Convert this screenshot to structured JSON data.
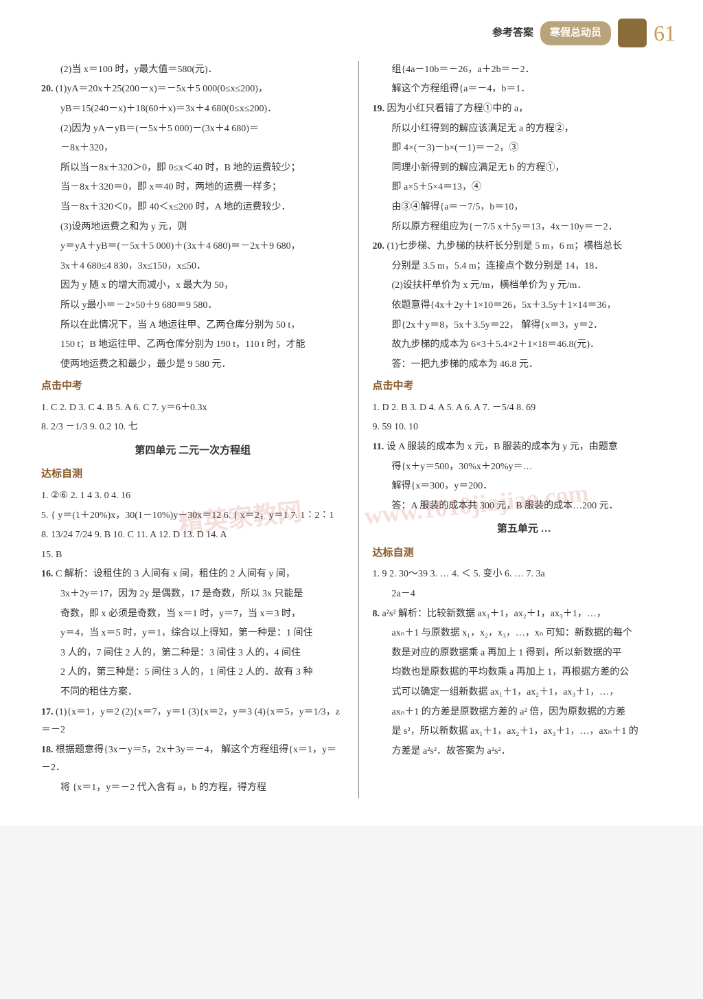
{
  "header": {
    "ref": "参考答案",
    "pill": "寒假总动员",
    "pagenum": "61"
  },
  "watermark1": "精英家教网",
  "watermark2": "www.1010jiajiao.com",
  "left": {
    "l1": "(2)当 x＝100 时，y最大值＝580(元)．",
    "l2n": "20.",
    "l2": "(1)yA＝20x＋25(200－x)＝－5x＋5 000(0≤x≤200)，",
    "l3": "yB＝15(240－x)＋18(60＋x)＝3x＋4 680(0≤x≤200)．",
    "l4": "(2)因为 yA－yB＝(－5x＋5 000)－(3x＋4 680)＝",
    "l5": "－8x＋320，",
    "l6": "所以当－8x＋320＞0，即 0≤x＜40 时，B 地的运费较少；",
    "l7": "当－8x＋320＝0，即 x＝40 时，两地的运费一样多；",
    "l8": "当－8x＋320＜0，即 40＜x≤200 时，A 地的运费较少．",
    "l9": "(3)设两地运费之和为 y 元，则",
    "l10": "y＝yA＋yB＝(－5x＋5 000)＋(3x＋4 680)＝－2x＋9 680，",
    "l11": "3x＋4 680≤4 830，3x≤150，x≤50．",
    "l12": "因为 y 随 x 的增大而减小，x 最大为 50，",
    "l13": "所以 y最小＝－2×50＋9 680＝9 580．",
    "l14": "所以在此情况下，当 A 地运往甲、乙两仓库分别为 50 t，",
    "l15": "150 t；B 地运往甲、乙两仓库分别为 190 t，110 t 时，才能",
    "l16": "使两地运费之和最少，最少是 9 580 元．",
    "sec1": "点击中考",
    "l17": "1. C  2. D  3. C  4. B  5. A  6. C  7. y＝6＋0.3x",
    "l18": "8. 2/3  －1/3  9. 0.2  10. 七",
    "unit4": "第四单元  二元一次方程组",
    "sec2": "达标自测",
    "l19": "1. ②⑥  2. 1  4  3. 0  4. 16",
    "l20": "5. { y＝(1＋20%)x，30(1－10%)y－30x＝12   6. { x＝2，y＝1   7. 1∶2∶1",
    "l21": "8. 13/24  7/24  9. B  10. C  11. A  12. D  13. D  14. A",
    "l22": "15. B",
    "l23n": "16.",
    "l23": "C  解析：设租住的 3 人间有 x 间，租住的 2 人间有 y 间，",
    "l24": "3x＋2y＝17，因为 2y 是偶数，17 是奇数，所以 3x 只能是",
    "l25": "奇数，即 x 必须是奇数，当 x＝1 时，y＝7，当 x＝3 时，",
    "l26": "y＝4，当 x＝5 时，y＝1，综合以上得知，第一种是：1 间住",
    "l27": "3 人的，7 间住 2 人的，第二种是：3 间住 3 人的，4 间住",
    "l28": "2 人的，第三种是：5 间住 3 人的，1 间住 2 人的．故有 3 种",
    "l29": "不同的租住方案．",
    "l30n": "17.",
    "l30": "(1){x＝1，y＝2  (2){x＝7，y＝1  (3){x＝2，y＝3  (4){x＝5，y＝1/3，z＝－2",
    "l31n": "18.",
    "l31": "根据题意得{3x－y＝5，2x＋3y＝－4， 解这个方程组得{x＝1，y＝－2．",
    "l32": "将 {x＝1，y＝－2 代入含有 a，b 的方程，得方程"
  },
  "right": {
    "l1": "组{4a－10b＝－26，a＋2b＝－2．",
    "l2": "解这个方程组得{a＝－4，b＝1．",
    "l3n": "19.",
    "l3": "因为小红只看错了方程①中的 a，",
    "l4": "所以小红得到的解应该满足无 a 的方程②，",
    "l5": "即 4×(－3)－b×(－1)＝－2，③",
    "l6": "同理小新得到的解应满足无 b 的方程①，",
    "l7": "即 a×5＋5×4＝13，④",
    "l8": "由③④解得{a＝－7/5，b＝10，",
    "l9": "所以原方程组应为{－7/5 x＋5y＝13，4x－10y＝－2．",
    "l10n": "20.",
    "l10": "(1)七步梯、九步梯的扶杆长分别是 5 m，6 m；横档总长",
    "l11": "分别是 3.5 m，5.4 m；连接点个数分别是 14，18．",
    "l12": "(2)设扶杆单价为 x 元/m，横档单价为 y 元/m．",
    "l13": "依题意得{4x＋2y＋1×10＝26，5x＋3.5y＋1×14＝36，",
    "l14": "即{2x＋y＝8，5x＋3.5y＝22，  解得{x＝3，y＝2．",
    "l15": "故九步梯的成本为 6×3＋5.4×2＋1×18＝46.8(元)．",
    "l16": "答：一把九步梯的成本为 46.8 元．",
    "sec1": "点击中考",
    "l17": "1. D  2. B  3. D  4. A  5. A  6. A  7. －5/4  8. 69",
    "l18": "9. 59  10. 10",
    "l19n": "11.",
    "l19": "设 A 服装的成本为 x 元，B 服装的成本为 y 元，由题意",
    "l20": "得{x＋y＝500，30%x＋20%y＝…",
    "l21": "解得{x＝300，y＝200．",
    "l22": "答：A 服装的成本共 300 元，B 服装的成本…200 元．",
    "unit5": "第五单元  …",
    "sec2": "达标自测",
    "l23": "1. 9  2. 30～39  3. …  4. ＜  5. 变小  6. …  7. 3a",
    "l24": "2a－4",
    "l25n": "8.",
    "l25": "a²s²  解析：比较新数据 ax₁＋1，ax₂＋1，ax₃＋1，…，",
    "l26": "axₙ＋1 与原数据 x₁，x₂，x₃，…，xₙ 可知：新数据的每个",
    "l27": "数是对应的原数据乘 a 再加上 1 得到，所以新数据的平",
    "l28": "均数也是原数据的平均数乘 a 再加上 1，再根据方差的公",
    "l29": "式可以确定一组新数据 ax₁＋1，ax₂＋1，ax₃＋1，…，",
    "l30": "axₙ＋1 的方差是原数据方差的 a² 倍，因为原数据的方差",
    "l31": "是 s²，所以新数据 ax₁＋1，ax₂＋1，ax₃＋1，…，axₙ＋1 的",
    "l32": "方差是 a²s²．故答案为 a²s²．"
  }
}
